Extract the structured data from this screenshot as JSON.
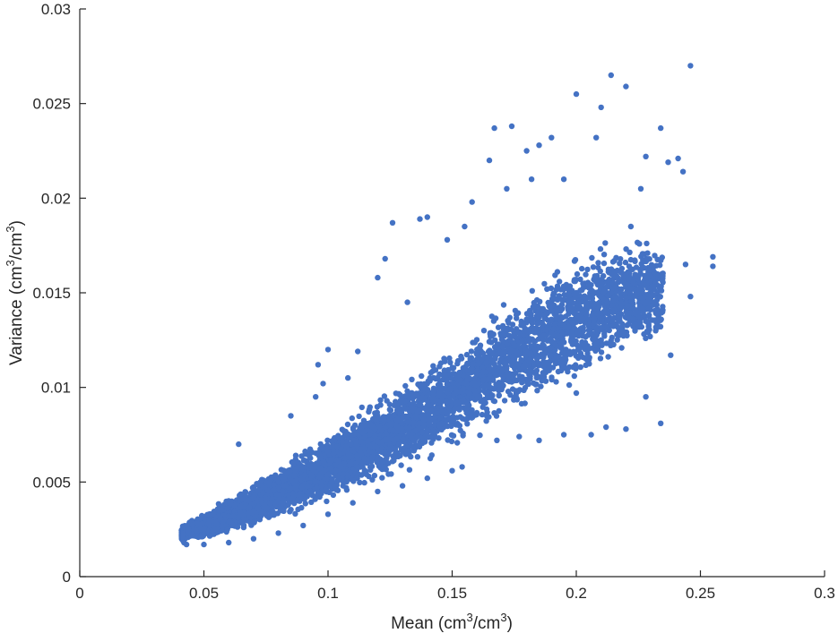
{
  "chart_data": {
    "type": "scatter",
    "title": "",
    "xlabel_parts": {
      "before": "Mean (cm",
      "sup1": "3",
      "middle": "/cm",
      "sup2": "3",
      "after": ")"
    },
    "ylabel_parts": {
      "before": "Variance (cm",
      "sup1": "3",
      "middle": "/cm",
      "sup2": "3",
      "after": ")"
    },
    "xlim": [
      0,
      0.3
    ],
    "ylim": [
      0,
      0.03
    ],
    "x_ticks": [
      0,
      0.05,
      0.1,
      0.15,
      0.2,
      0.25,
      0.3
    ],
    "x_tick_labels": [
      "0",
      "0.05",
      "0.1",
      "0.15",
      "0.2",
      "0.25",
      "0.3"
    ],
    "y_ticks": [
      0,
      0.005,
      0.01,
      0.015,
      0.02,
      0.025,
      0.03
    ],
    "y_tick_labels": [
      "0",
      "0.005",
      "0.01",
      "0.015",
      "0.02",
      "0.025",
      "0.03"
    ],
    "grid": false,
    "legend": "none",
    "marker_color": "#4472C4",
    "points_outline": [
      [
        0.042,
        0.0018
      ],
      [
        0.045,
        0.0022
      ],
      [
        0.05,
        0.0025
      ],
      [
        0.055,
        0.0028
      ],
      [
        0.06,
        0.0032
      ],
      [
        0.065,
        0.0037
      ],
      [
        0.07,
        0.0042
      ],
      [
        0.08,
        0.005
      ],
      [
        0.09,
        0.0058
      ],
      [
        0.1,
        0.0066
      ],
      [
        0.11,
        0.0075
      ],
      [
        0.12,
        0.0085
      ],
      [
        0.13,
        0.0093
      ],
      [
        0.14,
        0.0102
      ],
      [
        0.15,
        0.011
      ],
      [
        0.16,
        0.012
      ],
      [
        0.17,
        0.0128
      ],
      [
        0.18,
        0.0136
      ],
      [
        0.19,
        0.0143
      ],
      [
        0.2,
        0.015
      ],
      [
        0.21,
        0.0155
      ],
      [
        0.22,
        0.016
      ],
      [
        0.064,
        0.007
      ],
      [
        0.095,
        0.0095
      ],
      [
        0.1,
        0.012
      ],
      [
        0.12,
        0.0158
      ],
      [
        0.123,
        0.0168
      ],
      [
        0.126,
        0.0187
      ],
      [
        0.137,
        0.0189
      ],
      [
        0.14,
        0.019
      ],
      [
        0.155,
        0.0185
      ],
      [
        0.165,
        0.022
      ],
      [
        0.167,
        0.0237
      ],
      [
        0.174,
        0.0238
      ],
      [
        0.18,
        0.0225
      ],
      [
        0.185,
        0.0228
      ],
      [
        0.19,
        0.0232
      ],
      [
        0.2,
        0.0255
      ],
      [
        0.208,
        0.0232
      ],
      [
        0.21,
        0.0248
      ],
      [
        0.214,
        0.0265
      ],
      [
        0.22,
        0.0259
      ],
      [
        0.226,
        0.0205
      ],
      [
        0.228,
        0.0222
      ],
      [
        0.234,
        0.0237
      ],
      [
        0.237,
        0.0219
      ],
      [
        0.241,
        0.0221
      ],
      [
        0.243,
        0.0214
      ],
      [
        0.246,
        0.027
      ],
      [
        0.246,
        0.0148
      ],
      [
        0.255,
        0.0169
      ],
      [
        0.255,
        0.0164
      ],
      [
        0.238,
        0.0117
      ],
      [
        0.234,
        0.0081
      ],
      [
        0.22,
        0.0078
      ],
      [
        0.212,
        0.0079
      ],
      [
        0.206,
        0.0075
      ],
      [
        0.2,
        0.0097
      ],
      [
        0.195,
        0.0075
      ],
      [
        0.185,
        0.0072
      ],
      [
        0.177,
        0.0074
      ],
      [
        0.168,
        0.0072
      ],
      [
        0.154,
        0.0058
      ],
      [
        0.15,
        0.0056
      ],
      [
        0.14,
        0.0052
      ],
      [
        0.13,
        0.0048
      ],
      [
        0.12,
        0.0045
      ],
      [
        0.11,
        0.0039
      ],
      [
        0.1,
        0.0033
      ],
      [
        0.09,
        0.0027
      ],
      [
        0.08,
        0.0023
      ],
      [
        0.07,
        0.002
      ],
      [
        0.06,
        0.0018
      ],
      [
        0.05,
        0.0017
      ],
      [
        0.043,
        0.0017
      ],
      [
        0.112,
        0.0119
      ],
      [
        0.098,
        0.0102
      ],
      [
        0.108,
        0.0105
      ],
      [
        0.085,
        0.0085
      ],
      [
        0.096,
        0.0112
      ],
      [
        0.132,
        0.0145
      ],
      [
        0.148,
        0.0178
      ],
      [
        0.158,
        0.0198
      ],
      [
        0.172,
        0.0205
      ],
      [
        0.182,
        0.021
      ],
      [
        0.195,
        0.021
      ],
      [
        0.222,
        0.0185
      ],
      [
        0.232,
        0.0155
      ],
      [
        0.244,
        0.0165
      ],
      [
        0.228,
        0.0135
      ],
      [
        0.232,
        0.013
      ],
      [
        0.21,
        0.0125
      ],
      [
        0.228,
        0.0095
      ]
    ],
    "dense_band": {
      "x_range": [
        0.041,
        0.235
      ],
      "y_at_x": [
        [
          0.04,
          0.0018,
          0.0026
        ],
        [
          0.06,
          0.0021,
          0.0042
        ],
        [
          0.08,
          0.0029,
          0.006
        ],
        [
          0.1,
          0.0038,
          0.0078
        ],
        [
          0.12,
          0.0048,
          0.0096
        ],
        [
          0.14,
          0.0058,
          0.0115
        ],
        [
          0.16,
          0.0072,
          0.0135
        ],
        [
          0.18,
          0.0085,
          0.0158
        ],
        [
          0.2,
          0.0098,
          0.0175
        ],
        [
          0.22,
          0.0112,
          0.0185
        ],
        [
          0.235,
          0.012,
          0.018
        ]
      ]
    }
  }
}
